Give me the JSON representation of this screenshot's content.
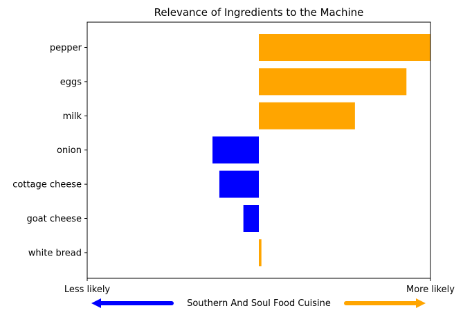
{
  "chart_data": {
    "type": "bar",
    "orientation": "horizontal",
    "title": "Relevance of Ingredients to the Machine",
    "categories": [
      "pepper",
      "eggs",
      "milk",
      "onion",
      "cottage cheese",
      "goat cheese",
      "white bread"
    ],
    "values": [
      1.0,
      0.86,
      0.56,
      -0.27,
      -0.23,
      -0.09,
      0.015
    ],
    "xlim": [
      -1.0,
      1.0
    ],
    "x_tick_labels": {
      "left": "Less likely",
      "right": "More likely"
    },
    "positive_color": "#FFA500",
    "negative_color": "#0000FF",
    "grid": false,
    "bottom_label": "Southern And Soul Food Cuisine",
    "bottom_arrows": {
      "left": {
        "direction": "left",
        "color": "#0000FF"
      },
      "right": {
        "direction": "right",
        "color": "#FFA500"
      }
    }
  }
}
